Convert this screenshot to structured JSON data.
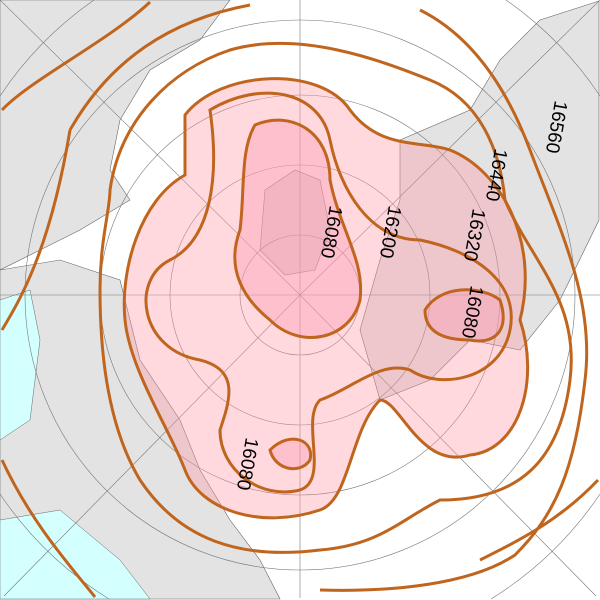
{
  "map": {
    "projection": "polar stereographic (north pole)",
    "variable": "geopotential height contours",
    "contour_color": "#c0651e",
    "fill_colors": {
      "outer_low": "#ffd4da",
      "inner_low": "#ffbccb",
      "land": "#e3e3e3",
      "ocean": "#ffffff",
      "cyan_region": "#d4ffff"
    },
    "contour_labels": [
      {
        "id": "c16560",
        "text": "16560"
      },
      {
        "id": "c16440",
        "text": "16440"
      },
      {
        "id": "c16320",
        "text": "16320"
      },
      {
        "id": "c16200",
        "text": "16200"
      },
      {
        "id": "c16080a",
        "text": "16080"
      },
      {
        "id": "c16080b",
        "text": "16080"
      },
      {
        "id": "c16080c",
        "text": "16080"
      }
    ]
  }
}
